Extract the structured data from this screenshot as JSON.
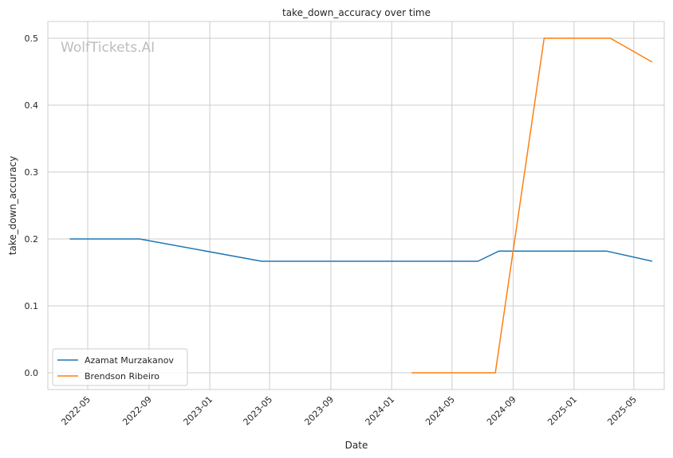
{
  "chart_data": {
    "type": "line",
    "title": "take_down_accuracy over time",
    "xlabel": "Date",
    "ylabel": "take_down_accuracy",
    "watermark": "WolfTickets.AI",
    "xlim": [
      "2022-02-10",
      "2025-07-01"
    ],
    "ylim": [
      -0.025,
      0.525
    ],
    "x_ticks": [
      "2022-05",
      "2022-09",
      "2023-01",
      "2023-05",
      "2023-09",
      "2024-01",
      "2024-05",
      "2024-09",
      "2025-01",
      "2025-05"
    ],
    "y_ticks": [
      "0.0",
      "0.1",
      "0.2",
      "0.3",
      "0.4",
      "0.5"
    ],
    "grid": true,
    "legend_position": "lower-left",
    "series": [
      {
        "name": "Azamat Murzakanov",
        "color": "#1f77b4",
        "points": [
          {
            "x": "2022-03-26",
            "y": 0.2
          },
          {
            "x": "2022-08-13",
            "y": 0.2
          },
          {
            "x": "2023-04-15",
            "y": 0.1667
          },
          {
            "x": "2024-06-22",
            "y": 0.1667
          },
          {
            "x": "2024-08-03",
            "y": 0.1818
          },
          {
            "x": "2025-03-08",
            "y": 0.1818
          },
          {
            "x": "2025-06-07",
            "y": 0.1667
          }
        ]
      },
      {
        "name": "Brendson Ribeiro",
        "color": "#ff7f0e",
        "points": [
          {
            "x": "2024-02-10",
            "y": 0.0
          },
          {
            "x": "2024-07-27",
            "y": 0.0
          },
          {
            "x": "2024-11-02",
            "y": 0.5
          },
          {
            "x": "2025-03-15",
            "y": 0.5
          },
          {
            "x": "2025-06-07",
            "y": 0.4643
          }
        ]
      }
    ]
  }
}
